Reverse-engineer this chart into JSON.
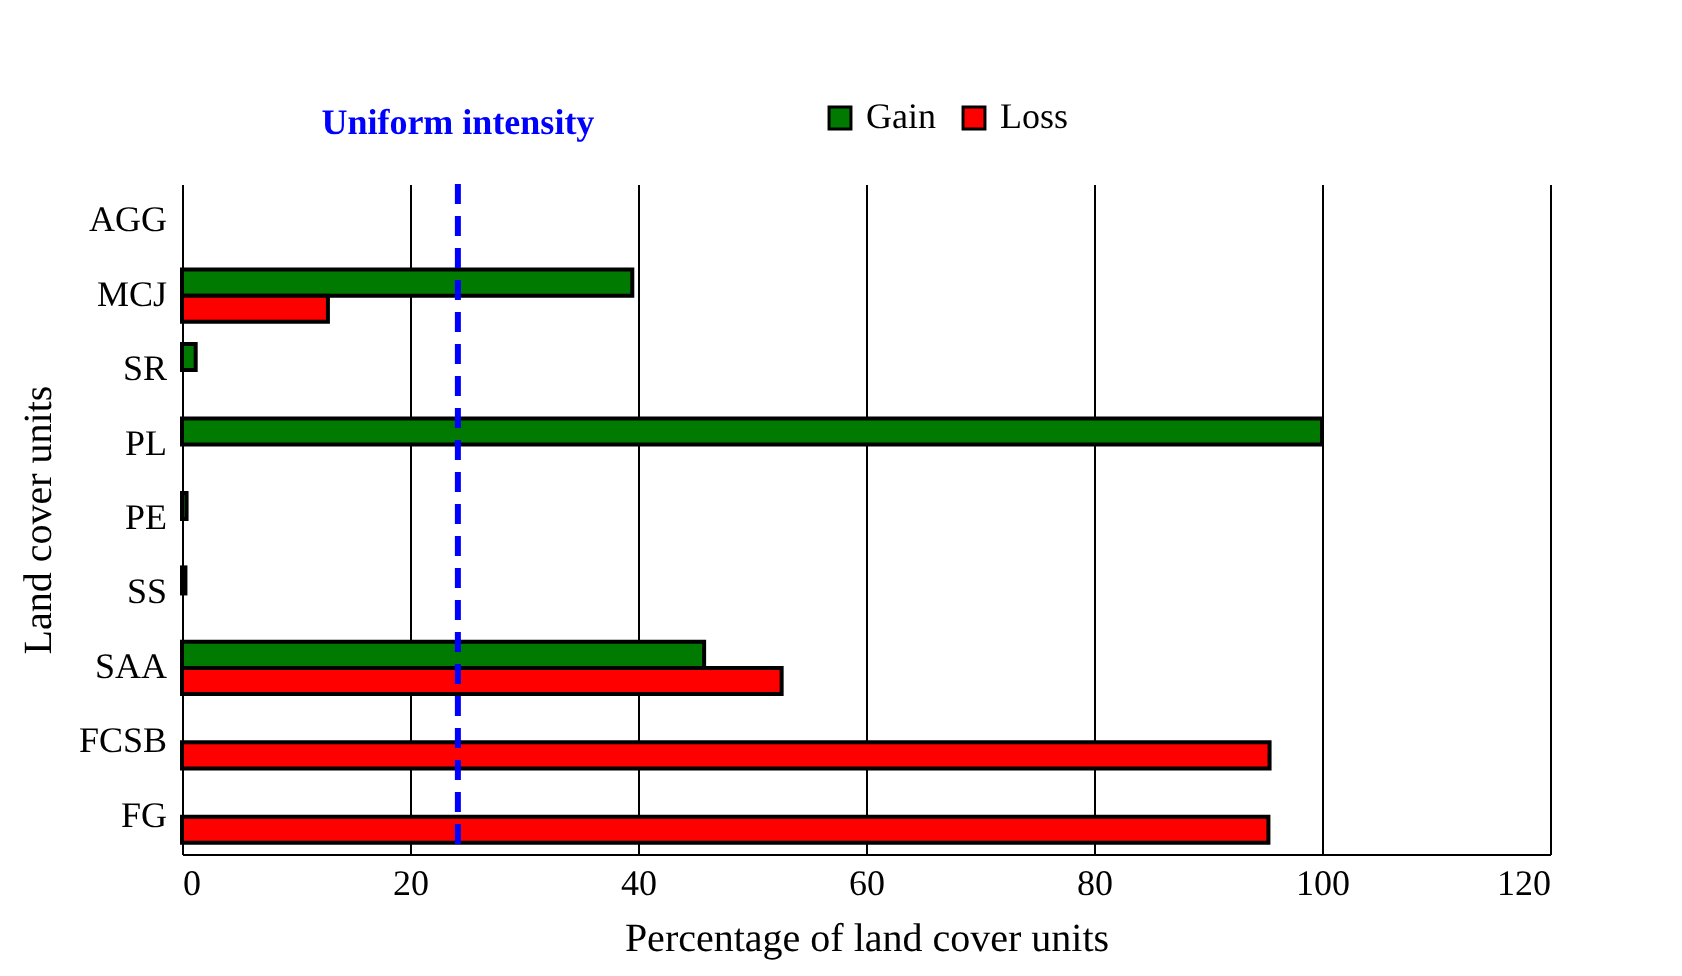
{
  "chart_data": {
    "type": "bar",
    "orientation": "horizontal",
    "categories": [
      "AGG",
      "MCJ",
      "SR",
      "PL",
      "PE",
      "SS",
      "SAA",
      "FCSB",
      "FG"
    ],
    "series": [
      {
        "name": "Gain",
        "color": "#007a00",
        "values": [
          null,
          39.5,
          1.2,
          100,
          0.4,
          0.3,
          45.8,
          null,
          null
        ]
      },
      {
        "name": "Loss",
        "color": "#ff0000",
        "values": [
          null,
          12.8,
          null,
          null,
          null,
          null,
          52.6,
          95.4,
          95.3
        ]
      }
    ],
    "xlim": [
      0,
      120
    ],
    "xticks": [
      0,
      20,
      40,
      60,
      80,
      100,
      120
    ],
    "xlabel": "Percentage of land cover units",
    "ylabel": "Land cover units",
    "grid": "x",
    "legend": "top",
    "ref_lines": [
      {
        "axis": "x",
        "value": 24.2,
        "label": "Uniform intensity",
        "color": "#0000ff",
        "line_style": "dashed"
      }
    ]
  }
}
